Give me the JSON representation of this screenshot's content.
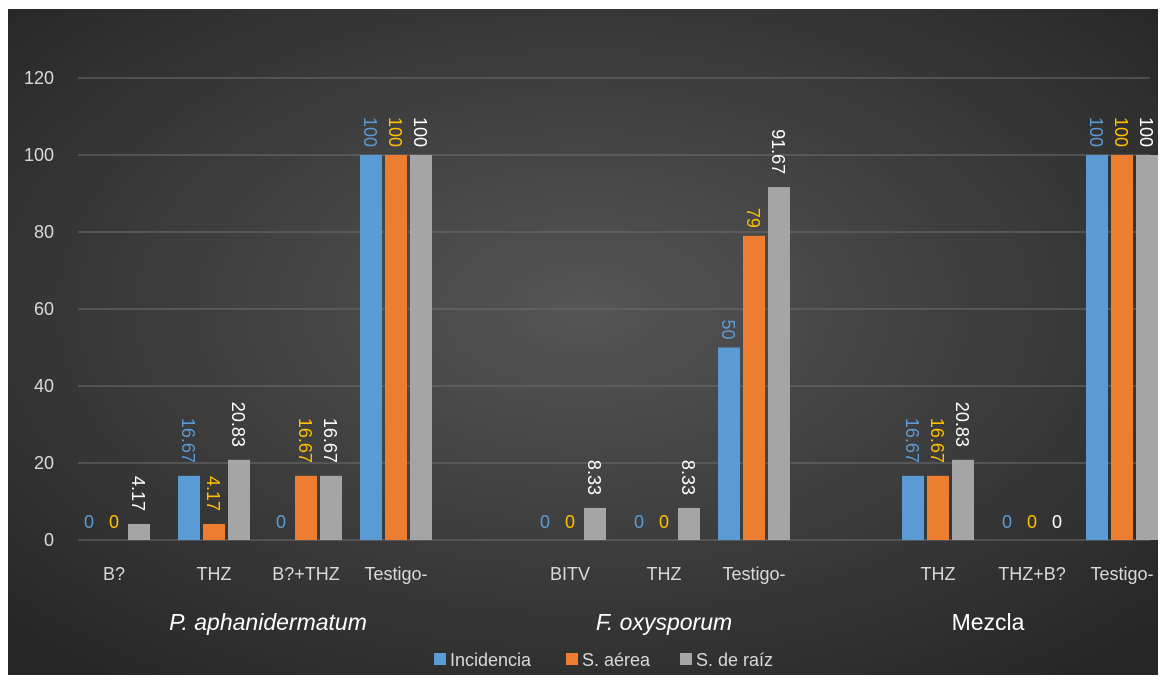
{
  "chart_data": {
    "type": "bar",
    "title": "",
    "xlabel": "",
    "ylabel": "",
    "ylim": [
      0,
      120
    ],
    "yticks": [
      0,
      20,
      40,
      60,
      80,
      100,
      120
    ],
    "grid": true,
    "legend_position": "bottom",
    "groups": [
      {
        "name": "P. aphanidermatum",
        "italic": true,
        "categories": [
          "B?",
          "THZ",
          "B?+THZ",
          "Testigo-"
        ]
      },
      {
        "name": "F. oxysporum",
        "italic": true,
        "categories": [
          "BITV",
          "THZ",
          "Testigo-"
        ]
      },
      {
        "name": "Mezcla",
        "italic": false,
        "categories": [
          "THZ",
          "THZ+B?",
          "Testigo-"
        ]
      }
    ],
    "categories": [
      "B?",
      "THZ",
      "B?+THZ",
      "Testigo-",
      "BITV",
      "THZ",
      "Testigo-",
      "THZ",
      "THZ+B?",
      "Testigo-"
    ],
    "series": [
      {
        "name": "Incidencia",
        "color": "#5b9bd5",
        "label_color": "#5b9bd5",
        "values": [
          0,
          16.67,
          0,
          100,
          0,
          0,
          50,
          16.67,
          0,
          100
        ],
        "labels": [
          "0",
          "16.67",
          "0",
          "100",
          "0",
          "0",
          "50",
          "16.67",
          "0",
          "100"
        ]
      },
      {
        "name": "S. aérea",
        "color": "#ed7d31",
        "label_color": "#ffc000",
        "values": [
          0,
          4.17,
          16.67,
          100,
          0,
          0,
          79,
          16.67,
          0,
          100
        ],
        "labels": [
          "0",
          "4.17",
          "16.67",
          "100",
          "0",
          "0",
          "79",
          "16.67",
          "0",
          "100"
        ]
      },
      {
        "name": "S. de raíz",
        "color": "#a5a5a5",
        "label_color": "#ffffff",
        "values": [
          4.17,
          20.83,
          16.67,
          100,
          8.33,
          8.33,
          91.67,
          20.83,
          0,
          100
        ],
        "labels": [
          "4.17",
          "20.83",
          "16.67",
          "100",
          "8.33",
          "8.33",
          "91.67",
          "20.83",
          "0",
          "100"
        ]
      }
    ]
  },
  "colors": {
    "background_center": "#555555",
    "background_edge": "#262626",
    "gridline": "#6e6e6e",
    "text": "#d9d9d9"
  }
}
